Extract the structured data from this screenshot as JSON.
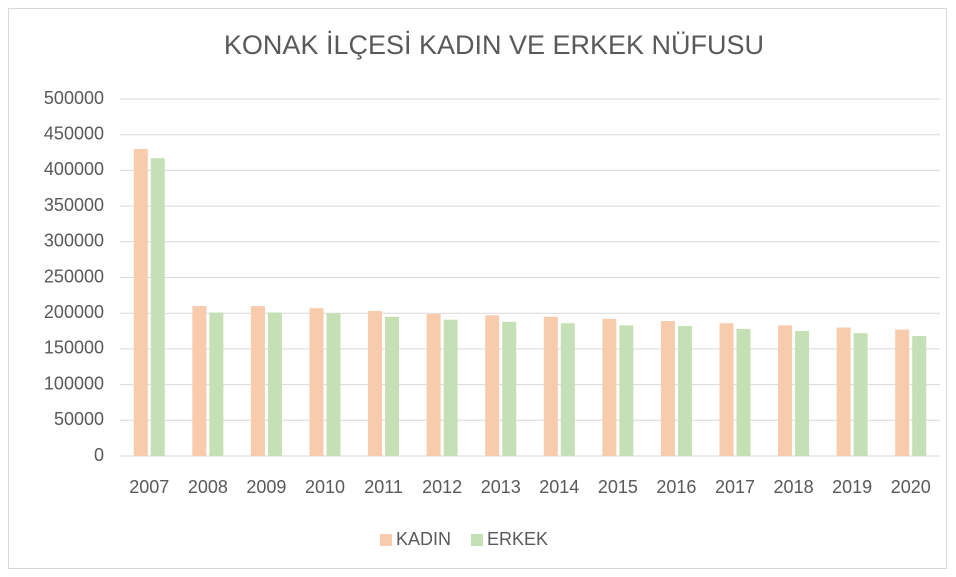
{
  "chart_data": {
    "type": "bar",
    "title": "KONAK İLÇESİ KADIN VE ERKEK NÜFUSU",
    "categories": [
      "2007",
      "2008",
      "2009",
      "2010",
      "2011",
      "2012",
      "2013",
      "2014",
      "2015",
      "2016",
      "2017",
      "2018",
      "2019",
      "2020"
    ],
    "series": [
      {
        "name": "KADIN",
        "color": "#f8cbad",
        "values": [
          430000,
          210000,
          210000,
          207000,
          203000,
          199000,
          197000,
          195000,
          192000,
          189000,
          186000,
          183000,
          180000,
          177000
        ]
      },
      {
        "name": "ERKEK",
        "color": "#c5e0b4",
        "values": [
          417000,
          201000,
          201000,
          200000,
          195000,
          191000,
          188000,
          186000,
          183000,
          182000,
          178000,
          175000,
          172000,
          168000
        ]
      }
    ],
    "ylim": [
      0,
      500000
    ],
    "yticks": [
      0,
      50000,
      100000,
      150000,
      200000,
      250000,
      300000,
      350000,
      400000,
      450000,
      500000
    ],
    "grid": true,
    "legend": "bottom"
  }
}
